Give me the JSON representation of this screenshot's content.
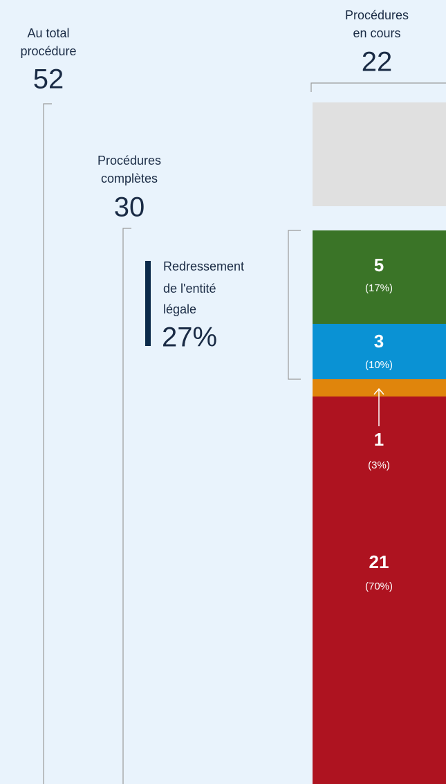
{
  "total": {
    "label": [
      "Au total",
      "procédure"
    ],
    "value": "52"
  },
  "ongoing": {
    "label": [
      "Procédures",
      "en cours"
    ],
    "value": "22"
  },
  "completed": {
    "label": [
      "Procédures",
      "complètes"
    ],
    "value": "30"
  },
  "highlight": {
    "label": [
      "Redressement",
      "de l'entité",
      "légale"
    ],
    "value": "27%"
  },
  "segments": [
    {
      "value": "5",
      "share": "(17%)"
    },
    {
      "value": "3",
      "share": "(10%)"
    },
    {
      "value": "1",
      "share": "(3%)"
    },
    {
      "value": "21",
      "share": "(70%)"
    }
  ]
}
